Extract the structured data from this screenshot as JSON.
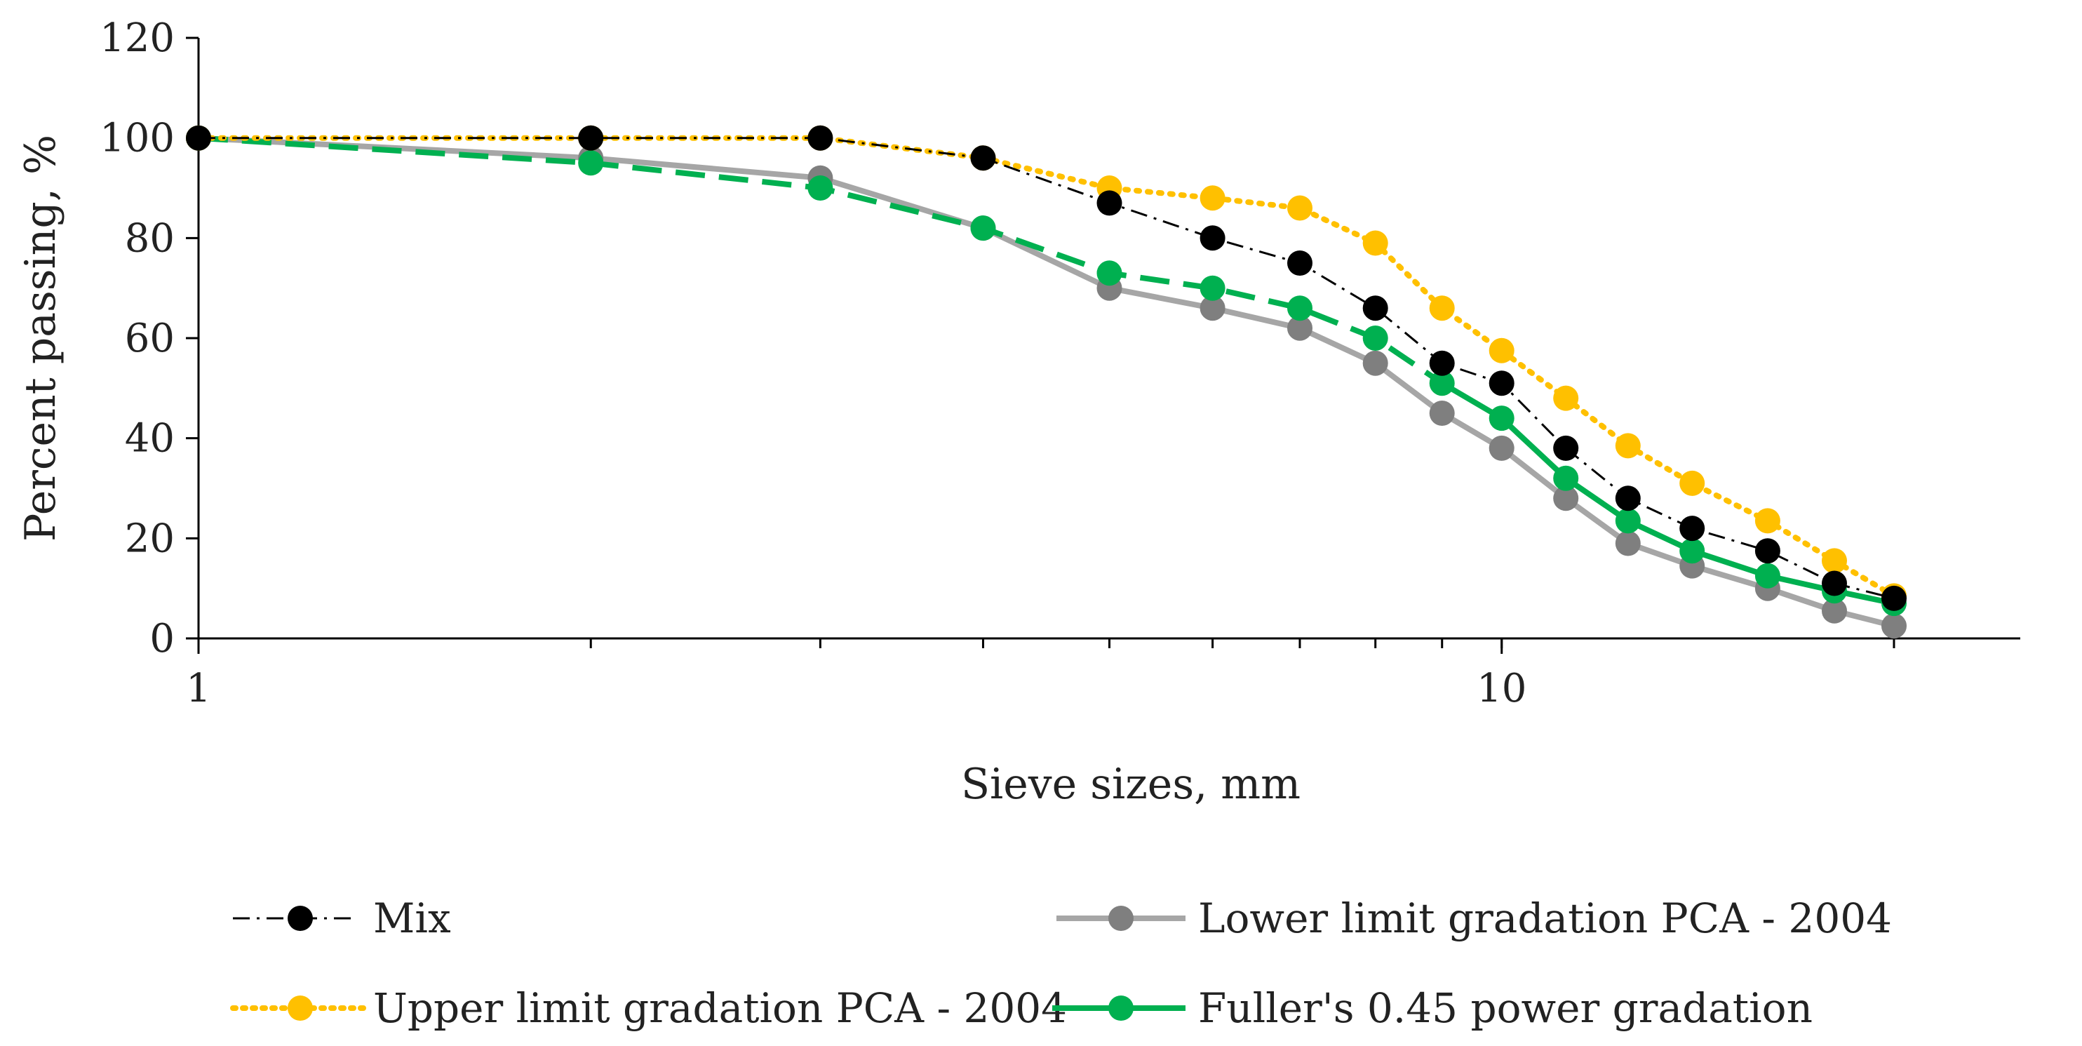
{
  "chart_data": {
    "type": "line",
    "xscale": "log",
    "title": "",
    "xlabel": "Sieve sizes, mm",
    "ylabel": "Percent passing, %",
    "xlim": [
      1,
      25
    ],
    "ylim": [
      0,
      120
    ],
    "yticks": [
      0,
      20,
      40,
      60,
      80,
      100,
      120
    ],
    "ytick_labels": [
      "0",
      "20",
      "40",
      "60",
      "80",
      "100",
      "120"
    ],
    "xticks": [
      1,
      10
    ],
    "xtick_labels": [
      "1",
      "10"
    ],
    "grid": false,
    "legend_position": "bottom",
    "series": [
      {
        "name": "Mix",
        "color": "#000000",
        "line_style": "dash-dot",
        "x": [
          1,
          2,
          3,
          4,
          5,
          6,
          7,
          8,
          9,
          10,
          11.2,
          12.5,
          14,
          16,
          18,
          20
        ],
        "values": [
          100,
          100,
          100,
          96,
          87,
          80,
          75,
          66,
          55,
          51,
          38,
          28,
          22,
          17.5,
          11,
          8
        ]
      },
      {
        "name": "Lower limit gradation PCA - 2004",
        "color": "#a6a6a6",
        "marker_color": "#7f7f7f",
        "line_style": "solid",
        "x": [
          1,
          2,
          3,
          4,
          5,
          6,
          7,
          8,
          9,
          10,
          11.2,
          12.5,
          14,
          16,
          18,
          20
        ],
        "values": [
          100,
          96,
          92,
          82,
          70,
          66,
          62,
          55,
          45,
          38,
          28,
          19,
          14.5,
          10,
          5.5,
          2.5
        ]
      },
      {
        "name": "Upper limit gradation PCA - 2004",
        "color": "#ffc000",
        "line_style": "dotted",
        "x": [
          1,
          2,
          3,
          4,
          5,
          6,
          7,
          8,
          9,
          10,
          11.2,
          12.5,
          14,
          16,
          18,
          20
        ],
        "values": [
          100,
          100,
          100,
          96,
          90,
          88,
          86,
          79,
          66,
          57.5,
          48,
          38.5,
          31,
          23.5,
          15.5,
          8.5
        ]
      },
      {
        "name": "Fuller's 0.45 power gradation",
        "color": "#00b050",
        "line_style": "dashed-then-solid",
        "x": [
          1,
          2,
          3,
          4,
          5,
          6,
          7,
          8,
          9,
          10,
          11.2,
          12.5,
          14,
          16,
          18,
          20
        ],
        "values": [
          100,
          95,
          90,
          82,
          73,
          70,
          66,
          60,
          51,
          44,
          32,
          23.5,
          17.5,
          12.5,
          9.5,
          7
        ]
      }
    ]
  }
}
